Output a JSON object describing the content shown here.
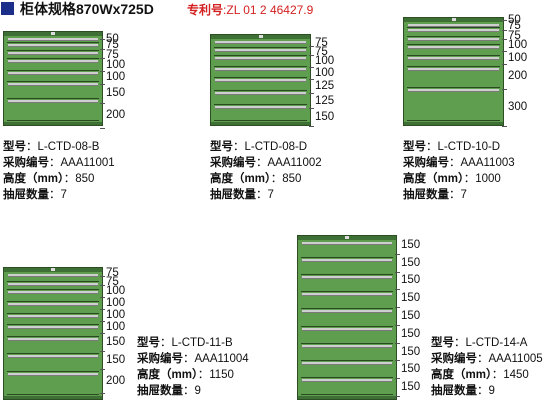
{
  "header": {
    "title": "柜体规格870Wx725D",
    "patent_label": "专利号",
    "patent_sep": ":",
    "patent_number": "ZL 01 2 46427.9",
    "accent": "#1b2e8a",
    "patent_color": "#d42020"
  },
  "cabinet_color": "#5f9d4f",
  "spec_labels": {
    "model": "型号",
    "code": "采购编号",
    "height": "高度（mm）",
    "drawers": "抽屉数量"
  },
  "cabinets": [
    {
      "model": "L-CTD-08-B",
      "code": "AAA11001",
      "height": "850",
      "drawers": "7",
      "drawer_heights": [
        "50",
        "75",
        "75",
        "100",
        "100",
        "150",
        "200"
      ]
    },
    {
      "model": "L-CTD-08-D",
      "code": "AAA11002",
      "height": "850",
      "drawers": "7",
      "drawer_heights": [
        "75",
        "75",
        "100",
        "100",
        "125",
        "125",
        "150"
      ]
    },
    {
      "model": "L-CTD-10-D",
      "code": "AAA11003",
      "height": "1000",
      "drawers": "7",
      "drawer_heights": [
        "50",
        "75",
        "75",
        "100",
        "100",
        "200",
        "300"
      ]
    },
    {
      "model": "L-CTD-11-B",
      "code": "AAA11004",
      "height": "1150",
      "drawers": "9",
      "drawer_heights": [
        "75",
        "75",
        "100",
        "100",
        "100",
        "100",
        "150",
        "150",
        "200"
      ]
    },
    {
      "model": "L-CTD-14-A",
      "code": "AAA11005",
      "height": "1450",
      "drawers": "9",
      "drawer_heights": [
        "150",
        "150",
        "150",
        "150",
        "150",
        "150",
        "150",
        "150",
        "150"
      ]
    }
  ]
}
